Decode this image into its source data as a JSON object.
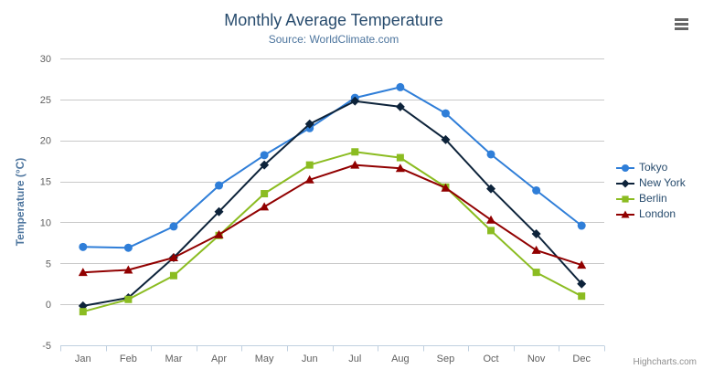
{
  "chart": {
    "title": "Monthly Average Temperature",
    "subtitle": "Source: WorldClimate.com",
    "y_axis_title": "Temperature (°C)",
    "credits": "Highcharts.com"
  },
  "chart_data": {
    "type": "line",
    "title": "Monthly Average Temperature",
    "subtitle": "Source: WorldClimate.com",
    "xlabel": "",
    "ylabel": "Temperature (°C)",
    "categories": [
      "Jan",
      "Feb",
      "Mar",
      "Apr",
      "May",
      "Jun",
      "Jul",
      "Aug",
      "Sep",
      "Oct",
      "Nov",
      "Dec"
    ],
    "series": [
      {
        "name": "Tokyo",
        "color": "#2f7ed8",
        "marker": "circle",
        "values": [
          7.0,
          6.9,
          9.5,
          14.5,
          18.2,
          21.5,
          25.2,
          26.5,
          23.3,
          18.3,
          13.9,
          9.6
        ]
      },
      {
        "name": "New York",
        "color": "#0d233a",
        "marker": "diamond",
        "values": [
          -0.2,
          0.8,
          5.7,
          11.3,
          17.0,
          22.0,
          24.8,
          24.1,
          20.1,
          14.1,
          8.6,
          2.5
        ]
      },
      {
        "name": "Berlin",
        "color": "#8bbc21",
        "marker": "square",
        "values": [
          -0.9,
          0.6,
          3.5,
          8.4,
          13.5,
          17.0,
          18.6,
          17.9,
          14.3,
          9.0,
          3.9,
          1.0
        ]
      },
      {
        "name": "London",
        "color": "#910000",
        "marker": "triangle",
        "values": [
          3.9,
          4.2,
          5.7,
          8.5,
          11.9,
          15.2,
          17.0,
          16.6,
          14.2,
          10.3,
          6.6,
          4.8
        ]
      }
    ],
    "ylim": [
      -5,
      30
    ],
    "yticks": [
      -5,
      0,
      5,
      10,
      15,
      20,
      25,
      30
    ],
    "grid": true,
    "legend_position": "right"
  },
  "styles": {
    "grid_color": "#c9c9c9",
    "axis_line_color": "#c0d0e0",
    "tick_label_color": "#606060",
    "title_color": "#274b6d",
    "subtitle_color": "#4d759e",
    "axis_title_color": "#4d759e",
    "legend_text_color": "#274b6d",
    "credits_color": "#909090",
    "menu_icon_color": "#666666"
  }
}
